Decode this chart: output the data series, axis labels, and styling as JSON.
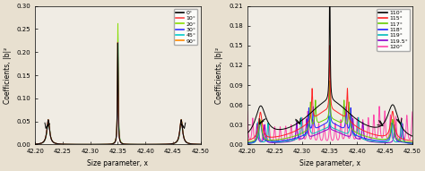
{
  "left_panel": {
    "xlim": [
      42.2,
      42.5
    ],
    "ylim": [
      0.0,
      0.3
    ],
    "yticks": [
      0.0,
      0.05,
      0.1,
      0.15,
      0.2,
      0.25,
      0.3
    ],
    "xticks": [
      42.2,
      42.25,
      42.3,
      42.35,
      42.4,
      42.45,
      42.5
    ],
    "xlabel": "Size parameter, x",
    "ylabel": "Coefficients, |b|²",
    "legend_labels": [
      "0°",
      "10°",
      "20°",
      "30°",
      "45°",
      "90°"
    ],
    "legend_colors": [
      "black",
      "#ff4444",
      "#88dd00",
      "#3333ff",
      "#00cccc",
      "#ff8800"
    ],
    "bg_color": "#f0ece4"
  },
  "right_panel": {
    "xlim": [
      42.2,
      42.5
    ],
    "ylim": [
      0.0,
      0.21
    ],
    "yticks": [
      0.0,
      0.03,
      0.06,
      0.09,
      0.12,
      0.15,
      0.18,
      0.21
    ],
    "xticks": [
      42.2,
      42.25,
      42.3,
      42.35,
      42.4,
      42.45,
      42.5
    ],
    "xlabel": "Size parameter, x",
    "ylabel": "Coefficients, |b|²",
    "legend_labels": [
      "110°",
      "115°",
      "117°",
      "118°",
      "119°",
      "119.5°",
      "120°"
    ],
    "legend_colors": [
      "black",
      "#ff2222",
      "#66cc00",
      "#2222ff",
      "#00bbbb",
      "#8800cc",
      "#ff44aa"
    ],
    "bg_color": "#f0ece4"
  }
}
